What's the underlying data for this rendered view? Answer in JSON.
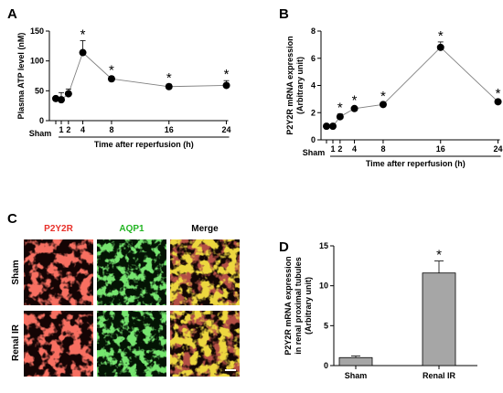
{
  "panel_letters": {
    "a": "A",
    "b": "B",
    "c": "C",
    "d": "D"
  },
  "micro": {
    "columns": [
      "P2Y2R",
      "AQP1",
      "Merge"
    ],
    "rows": [
      "Sham",
      "Renal IR"
    ],
    "colors": {
      "p2y2r": "#e8302a",
      "aqp1": "#23b523",
      "merge": "#c8b400",
      "bg": "#140404"
    }
  },
  "chart_data": [
    {
      "type": "line",
      "panel": "A",
      "x": [
        0,
        1,
        2,
        4,
        8,
        16,
        24
      ],
      "tick_labels": [
        "1",
        "2",
        "4",
        "8",
        "16",
        "24"
      ],
      "sham_label": "Sham",
      "values": [
        37,
        35,
        45,
        114,
        70,
        57,
        59
      ],
      "error": [
        3,
        12,
        8,
        20,
        4,
        4,
        8
      ],
      "significant": [
        false,
        false,
        false,
        true,
        true,
        true,
        true
      ],
      "star": "*",
      "ylabel": "Plasma ATP level (nM)",
      "xlabel": "Time after reperfusion (h)",
      "ylim": [
        0,
        150
      ],
      "yticks": [
        0,
        50,
        100,
        150
      ]
    },
    {
      "type": "line",
      "panel": "B",
      "x": [
        0,
        1,
        2,
        4,
        8,
        16,
        24
      ],
      "tick_labels": [
        "1",
        "2",
        "4",
        "8",
        "16",
        "24"
      ],
      "sham_label": "Sham",
      "values": [
        1.0,
        1.0,
        1.7,
        2.3,
        2.6,
        6.8,
        2.8
      ],
      "error": [
        0.05,
        0.05,
        0.2,
        0.15,
        0.15,
        0.4,
        0.15
      ],
      "significant": [
        false,
        false,
        true,
        true,
        true,
        true,
        true
      ],
      "star": "*",
      "ylabel": [
        "P2Y2R mRNA expression",
        "(Arbitrary unit)"
      ],
      "xlabel": "Time after reperfusion (h)",
      "ylim": [
        0,
        8
      ],
      "yticks": [
        0,
        2,
        4,
        6,
        8
      ]
    },
    {
      "type": "bar",
      "panel": "D",
      "categories": [
        "Sham",
        "Renal IR"
      ],
      "values": [
        1.0,
        11.6
      ],
      "error": [
        0.2,
        1.5
      ],
      "significant": [
        false,
        true
      ],
      "star": "*",
      "bar_color": "#a6a6a6",
      "ylabel": [
        "P2Y2R mRNA expression",
        "in renal proximal tubules",
        "(Arbitrary unit)"
      ],
      "ylim": [
        0,
        15
      ],
      "yticks": [
        0,
        5,
        10,
        15
      ]
    }
  ]
}
